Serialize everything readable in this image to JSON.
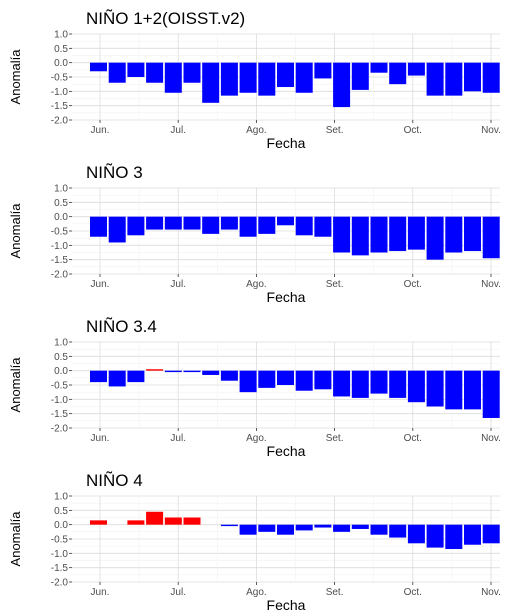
{
  "chart_data": [
    {
      "type": "bar",
      "title": "NIÑO 1+2(OISST.v2)",
      "xlabel": "Fecha",
      "ylabel": "Anomalía",
      "xticks": [
        "Jun.",
        "Jul.",
        "Ago.",
        "Set.",
        "Oct.",
        "Nov."
      ],
      "yticks": [
        "1.0",
        "0.5",
        "0.0",
        "-0.5",
        "-1.0",
        "-1.5",
        "-2.0"
      ],
      "ylim": [
        -2.0,
        1.0
      ],
      "grid": true,
      "weeks": 22,
      "values": [
        -0.3,
        -0.7,
        -0.5,
        -0.7,
        -1.05,
        -0.7,
        -1.4,
        -1.15,
        -1.05,
        -1.15,
        -0.85,
        -1.05,
        -0.55,
        -1.55,
        -0.95,
        -0.35,
        -0.75,
        -0.45,
        -1.15,
        -1.15,
        -1.0,
        -1.05
      ],
      "colors": {
        "positive": "#ff0000",
        "negative": "#0000ff"
      }
    },
    {
      "type": "bar",
      "title": "NIÑO 3",
      "xlabel": "Fecha",
      "ylabel": "Anomalía",
      "xticks": [
        "Jun.",
        "Jul.",
        "Ago.",
        "Set.",
        "Oct.",
        "Nov."
      ],
      "yticks": [
        "1.0",
        "0.5",
        "0.0",
        "-0.5",
        "-1.0",
        "-1.5",
        "-2.0"
      ],
      "ylim": [
        -2.0,
        1.0
      ],
      "grid": true,
      "weeks": 22,
      "values": [
        -0.7,
        -0.9,
        -0.65,
        -0.45,
        -0.45,
        -0.45,
        -0.6,
        -0.45,
        -0.7,
        -0.6,
        -0.3,
        -0.65,
        -0.7,
        -1.25,
        -1.35,
        -1.25,
        -1.2,
        -1.15,
        -1.5,
        -1.25,
        -1.2,
        -1.45
      ],
      "colors": {
        "positive": "#ff0000",
        "negative": "#0000ff"
      }
    },
    {
      "type": "bar",
      "title": "NIÑO 3.4",
      "xlabel": "Fecha",
      "ylabel": "Anomalía",
      "xticks": [
        "Jun.",
        "Jul.",
        "Ago.",
        "Set.",
        "Oct.",
        "Nov."
      ],
      "yticks": [
        "1.0",
        "0.5",
        "0.0",
        "-0.5",
        "-1.0",
        "-1.5",
        "-2.0"
      ],
      "ylim": [
        -2.0,
        1.0
      ],
      "grid": true,
      "weeks": 22,
      "values": [
        -0.4,
        -0.55,
        -0.4,
        0.05,
        -0.05,
        -0.05,
        -0.15,
        -0.35,
        -0.75,
        -0.6,
        -0.5,
        -0.7,
        -0.65,
        -0.9,
        -0.95,
        -0.8,
        -0.95,
        -1.1,
        -1.25,
        -1.35,
        -1.35,
        -1.65
      ],
      "colors": {
        "positive": "#ff0000",
        "negative": "#0000ff"
      }
    },
    {
      "type": "bar",
      "title": "NIÑO 4",
      "xlabel": "Fecha",
      "ylabel": "Anomalía",
      "xticks": [
        "Jun.",
        "Jul.",
        "Ago.",
        "Set.",
        "Oct.",
        "Nov."
      ],
      "yticks": [
        "1.0",
        "0.5",
        "0.0",
        "-0.5",
        "-1.0",
        "-1.5",
        "-2.0"
      ],
      "ylim": [
        -2.0,
        1.0
      ],
      "grid": true,
      "weeks": 22,
      "values": [
        0.15,
        null,
        0.15,
        0.45,
        0.25,
        0.25,
        null,
        -0.05,
        -0.35,
        -0.25,
        -0.35,
        -0.2,
        -0.1,
        -0.25,
        -0.15,
        -0.35,
        -0.45,
        -0.65,
        -0.8,
        -0.85,
        -0.7,
        -0.65
      ],
      "colors": {
        "positive": "#ff0000",
        "negative": "#0000ff"
      }
    }
  ]
}
